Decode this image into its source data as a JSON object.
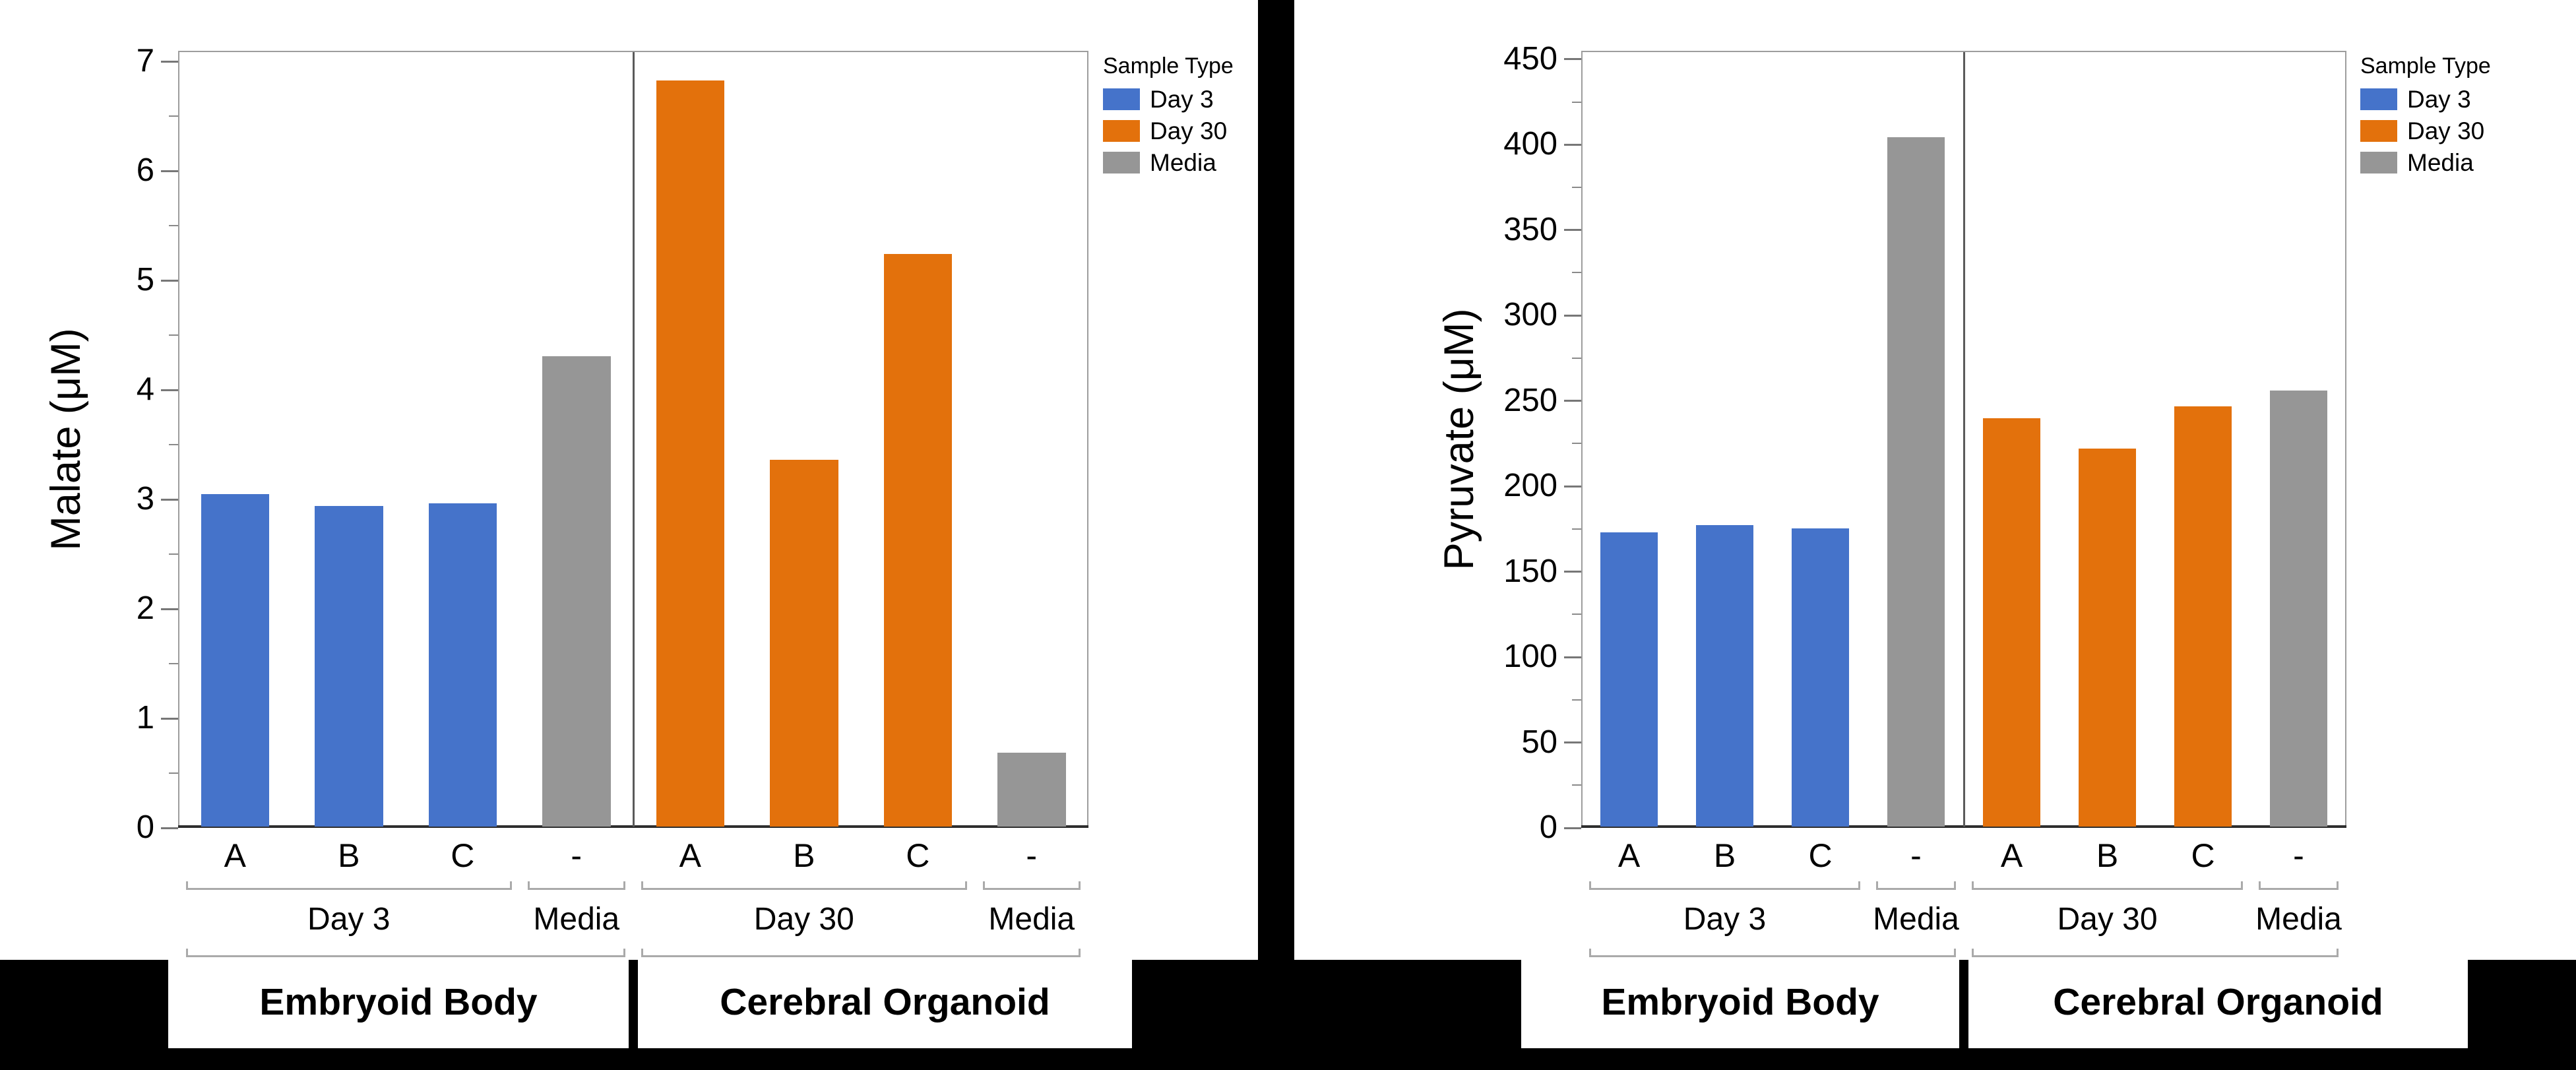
{
  "page": {
    "background": "#000000",
    "panel_background": "#ffffff"
  },
  "legend": {
    "title": "Sample Type",
    "items": [
      {
        "label": "Day 3",
        "color": "#4573CA"
      },
      {
        "label": "Day 30",
        "color": "#E3710C"
      },
      {
        "label": "Media",
        "color": "#969696"
      }
    ]
  },
  "chart_data": [
    {
      "type": "bar",
      "title": "",
      "ylabel": "Malate (μM)",
      "xlabel": "",
      "ylim": [
        0,
        7
      ],
      "ytick_step": 1,
      "y_minor_step": 0.5,
      "grid": false,
      "legend_position": "right",
      "categories": [
        "A",
        "B",
        "C",
        "-",
        "A",
        "B",
        "C",
        "-"
      ],
      "bar_series": [
        "Day 3",
        "Day 3",
        "Day 3",
        "Media",
        "Day 30",
        "Day 30",
        "Day 30",
        "Media"
      ],
      "values": [
        3.05,
        2.94,
        2.96,
        4.31,
        6.84,
        3.36,
        5.25,
        0.68
      ],
      "group_labels": [
        {
          "label": "Day 3",
          "start": 0,
          "end": 2
        },
        {
          "label": "Media",
          "start": 3,
          "end": 3
        },
        {
          "label": "Day 30",
          "start": 4,
          "end": 6
        },
        {
          "label": "Media",
          "start": 7,
          "end": 7
        }
      ],
      "super_groups": [
        {
          "label": "Embryoid Body",
          "start": 0,
          "end": 3
        },
        {
          "label": "Cerebral Organoid",
          "start": 4,
          "end": 7
        }
      ]
    },
    {
      "type": "bar",
      "title": "",
      "ylabel": "Pyruvate (μM)",
      "xlabel": "",
      "ylim": [
        0,
        450
      ],
      "ytick_step": 50,
      "y_minor_step": 25,
      "grid": false,
      "legend_position": "right",
      "categories": [
        "A",
        "B",
        "C",
        "-",
        "A",
        "B",
        "C",
        "-"
      ],
      "bar_series": [
        "Day 3",
        "Day 3",
        "Day 3",
        "Media",
        "Day 30",
        "Day 30",
        "Day 30",
        "Media"
      ],
      "values": [
        173,
        177,
        175,
        405,
        240,
        222,
        247,
        256
      ],
      "group_labels": [
        {
          "label": "Day 3",
          "start": 0,
          "end": 2
        },
        {
          "label": "Media",
          "start": 3,
          "end": 3
        },
        {
          "label": "Day 30",
          "start": 4,
          "end": 6
        },
        {
          "label": "Media",
          "start": 7,
          "end": 7
        }
      ],
      "super_groups": [
        {
          "label": "Embryoid Body",
          "start": 0,
          "end": 3
        },
        {
          "label": "Cerebral Organoid",
          "start": 4,
          "end": 7
        }
      ]
    }
  ]
}
